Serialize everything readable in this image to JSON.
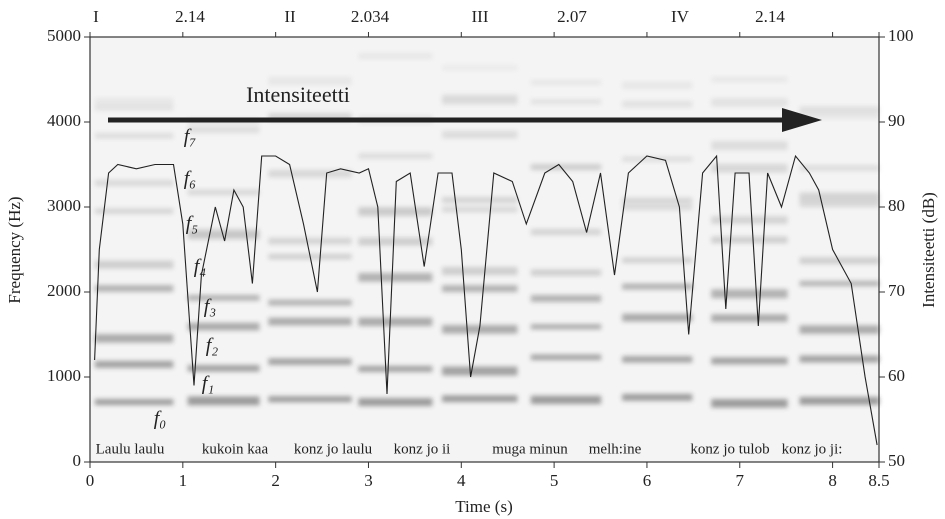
{
  "chart_data": {
    "type": "line",
    "x_label": "Time (s)",
    "y_label": "Frequency (Hz)",
    "y2_label": "Intensiteetti (dB)",
    "xlim": [
      0,
      8.5
    ],
    "xticks": [
      0,
      1,
      2,
      3,
      4,
      5,
      6,
      7,
      8,
      8.5
    ],
    "ylim": [
      0,
      5000
    ],
    "yticks": [
      0,
      1000,
      2000,
      3000,
      4000,
      5000
    ],
    "y2lim": [
      50,
      100
    ],
    "y2ticks": [
      50,
      60,
      70,
      80,
      90,
      100
    ],
    "x": [
      0.05,
      0.1,
      0.2,
      0.3,
      0.5,
      0.7,
      0.9,
      1.0,
      1.05,
      1.12,
      1.2,
      1.35,
      1.45,
      1.55,
      1.65,
      1.75,
      1.85,
      2.0,
      2.15,
      2.3,
      2.45,
      2.55,
      2.7,
      2.9,
      3.0,
      3.1,
      3.2,
      3.3,
      3.45,
      3.6,
      3.75,
      3.9,
      4.0,
      4.1,
      4.2,
      4.35,
      4.55,
      4.7,
      4.9,
      5.05,
      5.2,
      5.35,
      5.5,
      5.65,
      5.8,
      6.0,
      6.2,
      6.35,
      6.45,
      6.6,
      6.75,
      6.85,
      6.95,
      7.1,
      7.2,
      7.3,
      7.45,
      7.6,
      7.75,
      7.85,
      8.0,
      8.2,
      8.35,
      8.48
    ],
    "series": [
      {
        "name": "Intensiteetti",
        "color": "#222222",
        "axis": "y2",
        "values": [
          62,
          75,
          84,
          85,
          84.5,
          85,
          85,
          78,
          70,
          59,
          72,
          80,
          76,
          82,
          80,
          71,
          86,
          86,
          85,
          78,
          70,
          84,
          84.5,
          84,
          84.5,
          80,
          58,
          83,
          84,
          73,
          84,
          84,
          75,
          60,
          66,
          84,
          83,
          78,
          84,
          85,
          83,
          77,
          84,
          72,
          84,
          86,
          85.5,
          80,
          65,
          84,
          86,
          68,
          84,
          84,
          66,
          84,
          80,
          86,
          84,
          82,
          75,
          71,
          60,
          52
        ]
      }
    ],
    "top_labels": [
      "I",
      "2.14",
      "II",
      "2.034",
      "III",
      "2.07",
      "IV",
      "2.14"
    ],
    "harmonic_labels": [
      "f₀",
      "f₁",
      "f₂",
      "f₃",
      "f₄",
      "f₅",
      "f₆",
      "f₇"
    ],
    "phrase_labels": [
      "Laulu laulu",
      "kukoin kaa",
      "konz jo laulu",
      "konz jo ii",
      "muga minun",
      "melh:ine",
      "konz jo tulob",
      "konz jo ji:"
    ]
  }
}
